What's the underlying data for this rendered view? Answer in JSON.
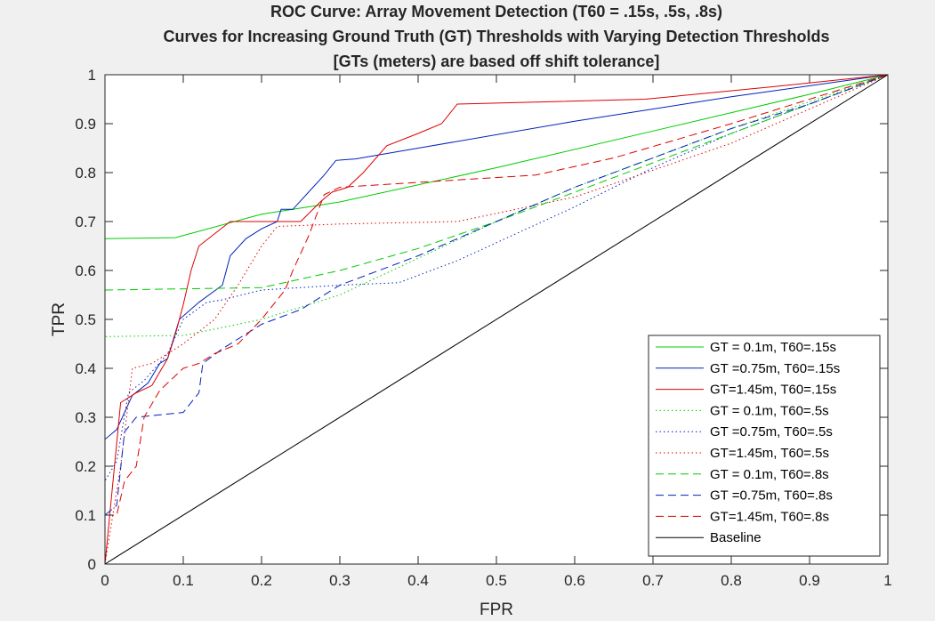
{
  "chart_data": {
    "type": "line",
    "title": [
      "ROC Curve: Array Movement Detection (T60 = .15s, .5s, .8s)",
      "Curves for Increasing Ground Truth (GT) Thresholds with Varying Detection Thresholds",
      "[GTs (meters) are based off shift tolerance]"
    ],
    "xlabel": "FPR",
    "ylabel": "TPR",
    "xlim": [
      0,
      1
    ],
    "ylim": [
      0,
      1
    ],
    "xticks": [
      "0",
      "0.1",
      "0.2",
      "0.3",
      "0.4",
      "0.5",
      "0.6",
      "0.7",
      "0.8",
      "0.9",
      "1"
    ],
    "yticks": [
      "0",
      "0.1",
      "0.2",
      "0.3",
      "0.4",
      "0.5",
      "0.6",
      "0.7",
      "0.8",
      "0.9",
      "1"
    ],
    "grid": false,
    "legend_position": "bottom-right",
    "series": [
      {
        "name": "GT = 0.1m, T60=.15s",
        "color": "#00cc00",
        "style": "solid",
        "points": [
          [
            0,
            0
          ],
          [
            0,
            0.665
          ],
          [
            0.09,
            0.667
          ],
          [
            0.2,
            0.715
          ],
          [
            0.3,
            0.74
          ],
          [
            0.5,
            0.81
          ],
          [
            0.7,
            0.885
          ],
          [
            0.9,
            0.96
          ],
          [
            1,
            1
          ]
        ]
      },
      {
        "name": "GT =0.75m, T60=.15s",
        "color": "#0022bb",
        "style": "solid",
        "points": [
          [
            0,
            0
          ],
          [
            0,
            0.255
          ],
          [
            0.015,
            0.275
          ],
          [
            0.035,
            0.345
          ],
          [
            0.055,
            0.37
          ],
          [
            0.07,
            0.41
          ],
          [
            0.08,
            0.42
          ],
          [
            0.095,
            0.5
          ],
          [
            0.12,
            0.535
          ],
          [
            0.15,
            0.57
          ],
          [
            0.16,
            0.63
          ],
          [
            0.18,
            0.665
          ],
          [
            0.2,
            0.685
          ],
          [
            0.22,
            0.7
          ],
          [
            0.225,
            0.725
          ],
          [
            0.24,
            0.725
          ],
          [
            0.26,
            0.76
          ],
          [
            0.28,
            0.795
          ],
          [
            0.295,
            0.825
          ],
          [
            0.32,
            0.828
          ],
          [
            0.4,
            0.85
          ],
          [
            0.6,
            0.905
          ],
          [
            0.8,
            0.955
          ],
          [
            1,
            1
          ]
        ]
      },
      {
        "name": "GT=1.45m, T60=.15s",
        "color": "#dd0000",
        "style": "solid",
        "points": [
          [
            0,
            0
          ],
          [
            0.02,
            0.33
          ],
          [
            0.04,
            0.35
          ],
          [
            0.06,
            0.365
          ],
          [
            0.08,
            0.42
          ],
          [
            0.09,
            0.47
          ],
          [
            0.1,
            0.53
          ],
          [
            0.11,
            0.6
          ],
          [
            0.12,
            0.65
          ],
          [
            0.16,
            0.7
          ],
          [
            0.2,
            0.7
          ],
          [
            0.25,
            0.7
          ],
          [
            0.275,
            0.74
          ],
          [
            0.29,
            0.76
          ],
          [
            0.31,
            0.77
          ],
          [
            0.33,
            0.8
          ],
          [
            0.36,
            0.855
          ],
          [
            0.4,
            0.88
          ],
          [
            0.43,
            0.9
          ],
          [
            0.45,
            0.94
          ],
          [
            0.69,
            0.95
          ],
          [
            0.85,
            0.975
          ],
          [
            1,
            1
          ]
        ]
      },
      {
        "name": "GT = 0.1m, T60=.5s",
        "color": "#00cc00",
        "style": "dotted",
        "points": [
          [
            0,
            0
          ],
          [
            0,
            0.465
          ],
          [
            0.1,
            0.467
          ],
          [
            0.2,
            0.5
          ],
          [
            0.3,
            0.55
          ],
          [
            0.4,
            0.625
          ],
          [
            0.5,
            0.7
          ],
          [
            0.6,
            0.77
          ],
          [
            0.7,
            0.83
          ],
          [
            0.8,
            0.89
          ],
          [
            0.9,
            0.945
          ],
          [
            1,
            1
          ]
        ]
      },
      {
        "name": "GT =0.75m, T60=.5s",
        "color": "#0022bb",
        "style": "dotted",
        "points": [
          [
            0,
            0
          ],
          [
            0,
            0.17
          ],
          [
            0.015,
            0.21
          ],
          [
            0.03,
            0.35
          ],
          [
            0.05,
            0.375
          ],
          [
            0.08,
            0.43
          ],
          [
            0.1,
            0.5
          ],
          [
            0.13,
            0.535
          ],
          [
            0.15,
            0.54
          ],
          [
            0.2,
            0.56
          ],
          [
            0.3,
            0.57
          ],
          [
            0.375,
            0.575
          ],
          [
            0.45,
            0.62
          ],
          [
            0.6,
            0.73
          ],
          [
            0.7,
            0.81
          ],
          [
            0.8,
            0.88
          ],
          [
            0.9,
            0.94
          ],
          [
            1,
            1
          ]
        ]
      },
      {
        "name": "GT=1.45m, T60=.5s",
        "color": "#dd0000",
        "style": "dotted",
        "points": [
          [
            0,
            0
          ],
          [
            0.02,
            0.2
          ],
          [
            0.035,
            0.4
          ],
          [
            0.06,
            0.41
          ],
          [
            0.1,
            0.45
          ],
          [
            0.14,
            0.5
          ],
          [
            0.17,
            0.57
          ],
          [
            0.2,
            0.65
          ],
          [
            0.22,
            0.69
          ],
          [
            0.3,
            0.695
          ],
          [
            0.45,
            0.7
          ],
          [
            0.6,
            0.75
          ],
          [
            0.8,
            0.86
          ],
          [
            1,
            1
          ]
        ]
      },
      {
        "name": "GT = 0.1m, T60=.8s",
        "color": "#00cc00",
        "style": "dashed",
        "points": [
          [
            0,
            0
          ],
          [
            0,
            0.56
          ],
          [
            0.2,
            0.565
          ],
          [
            0.3,
            0.6
          ],
          [
            0.4,
            0.645
          ],
          [
            0.5,
            0.7
          ],
          [
            0.6,
            0.76
          ],
          [
            0.7,
            0.82
          ],
          [
            0.8,
            0.88
          ],
          [
            0.9,
            0.94
          ],
          [
            1,
            1
          ]
        ]
      },
      {
        "name": "GT =0.75m, T60=.8s",
        "color": "#0022bb",
        "style": "dashed",
        "points": [
          [
            0,
            0
          ],
          [
            0,
            0.1
          ],
          [
            0.015,
            0.12
          ],
          [
            0.025,
            0.27
          ],
          [
            0.04,
            0.3
          ],
          [
            0.07,
            0.305
          ],
          [
            0.1,
            0.31
          ],
          [
            0.12,
            0.35
          ],
          [
            0.125,
            0.41
          ],
          [
            0.15,
            0.44
          ],
          [
            0.2,
            0.49
          ],
          [
            0.25,
            0.52
          ],
          [
            0.3,
            0.57
          ],
          [
            0.4,
            0.63
          ],
          [
            0.5,
            0.7
          ],
          [
            0.6,
            0.77
          ],
          [
            0.7,
            0.83
          ],
          [
            0.8,
            0.89
          ],
          [
            0.9,
            0.94
          ],
          [
            1,
            1
          ]
        ]
      },
      {
        "name": "GT=1.45m, T60=.8s",
        "color": "#dd0000",
        "style": "dashed",
        "points": [
          [
            0,
            0
          ],
          [
            0,
            0.1
          ],
          [
            0.015,
            0.1
          ],
          [
            0.025,
            0.17
          ],
          [
            0.04,
            0.2
          ],
          [
            0.05,
            0.3
          ],
          [
            0.07,
            0.355
          ],
          [
            0.1,
            0.4
          ],
          [
            0.12,
            0.41
          ],
          [
            0.14,
            0.43
          ],
          [
            0.17,
            0.45
          ],
          [
            0.2,
            0.5
          ],
          [
            0.23,
            0.56
          ],
          [
            0.24,
            0.6
          ],
          [
            0.26,
            0.67
          ],
          [
            0.28,
            0.755
          ],
          [
            0.3,
            0.77
          ],
          [
            0.4,
            0.78
          ],
          [
            0.55,
            0.795
          ],
          [
            0.65,
            0.83
          ],
          [
            0.8,
            0.9
          ],
          [
            1,
            1
          ]
        ]
      },
      {
        "name": "Baseline",
        "color": "#000000",
        "style": "solid",
        "points": [
          [
            0,
            0
          ],
          [
            1,
            1
          ]
        ]
      }
    ]
  }
}
